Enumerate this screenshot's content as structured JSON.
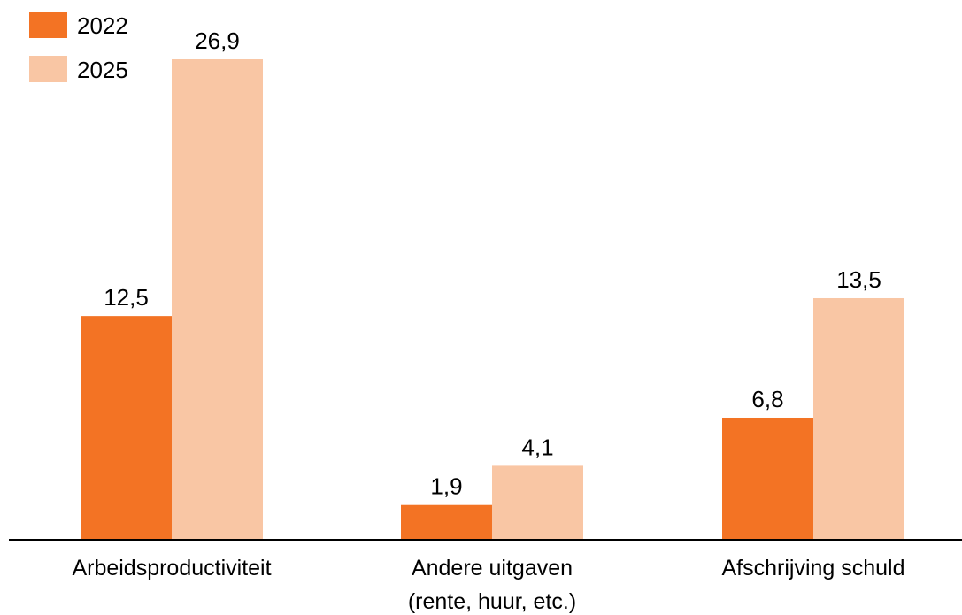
{
  "chart_data": {
    "type": "bar",
    "title": "",
    "xlabel": "",
    "ylabel": "",
    "ylim": [
      0,
      26.9
    ],
    "grid": false,
    "legend_position": "top-left",
    "categories": [
      [
        "Arbeidsproductiviteit"
      ],
      [
        "Andere uitgaven",
        "(rente, huur, etc.)"
      ],
      [
        "Afschrijving schuld"
      ]
    ],
    "series": [
      {
        "name": "2022",
        "color": "#F37324",
        "values": [
          12.5,
          1.9,
          6.8
        ],
        "labels": [
          "12,5",
          "1,9",
          "6,8"
        ]
      },
      {
        "name": "2025",
        "color": "#F9C6A4",
        "values": [
          26.9,
          4.1,
          13.5
        ],
        "labels": [
          "26,9",
          "4,1",
          "13,5"
        ]
      }
    ]
  }
}
